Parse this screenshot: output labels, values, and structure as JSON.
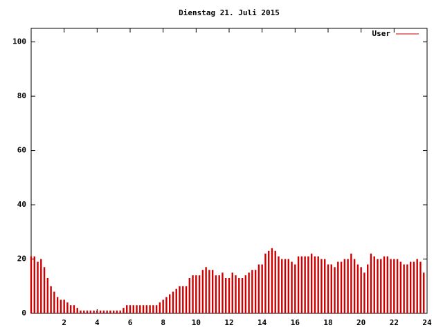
{
  "chart_data": {
    "type": "impulse",
    "title": "Dienstag 21. Juli 2015",
    "x": [
      0,
      0.2,
      0.4,
      0.6,
      0.8,
      1,
      1.2,
      1.4,
      1.6,
      1.8,
      2,
      2.2,
      2.4,
      2.6,
      2.8,
      3,
      3.2,
      3.4,
      3.6,
      3.8,
      4,
      4.2,
      4.4,
      4.6,
      4.8,
      5,
      5.2,
      5.4,
      5.6,
      5.8,
      6,
      6.2,
      6.4,
      6.6,
      6.8,
      7,
      7.2,
      7.4,
      7.6,
      7.8,
      8,
      8.2,
      8.4,
      8.6,
      8.8,
      9,
      9.2,
      9.4,
      9.6,
      9.8,
      10,
      10.2,
      10.4,
      10.6,
      10.8,
      11,
      11.2,
      11.4,
      11.6,
      11.8,
      12,
      12.2,
      12.4,
      12.6,
      12.8,
      13,
      13.2,
      13.4,
      13.6,
      13.8,
      14,
      14.2,
      14.4,
      14.6,
      14.8,
      15,
      15.2,
      15.4,
      15.6,
      15.8,
      16,
      16.2,
      16.4,
      16.6,
      16.8,
      17,
      17.2,
      17.4,
      17.6,
      17.8,
      18,
      18.2,
      18.4,
      18.6,
      18.8,
      19,
      19.2,
      19.4,
      19.6,
      19.8,
      20,
      20.2,
      20.4,
      20.6,
      20.8,
      21,
      21.2,
      21.4,
      21.6,
      21.8,
      22,
      22.2,
      22.4,
      22.6,
      22.8,
      23,
      23.2,
      23.4,
      23.6,
      23.8
    ],
    "series": [
      {
        "name": "User",
        "color": "#cc0000",
        "values": [
          21,
          21,
          19,
          20,
          17,
          13,
          10,
          8,
          6,
          5,
          5,
          4,
          3,
          3,
          2,
          1,
          1,
          1,
          1,
          1,
          1,
          1,
          1,
          1,
          1,
          1,
          1,
          1,
          2,
          3,
          3,
          3,
          3,
          3,
          3,
          3,
          3,
          3,
          3,
          4,
          5,
          6,
          7,
          8,
          9,
          10,
          10,
          10,
          13,
          14,
          14,
          14,
          16,
          17,
          16,
          16,
          14,
          14,
          15,
          13,
          13,
          15,
          14,
          13,
          13,
          14,
          15,
          16,
          16,
          18,
          18,
          22,
          23,
          24,
          23,
          21,
          20,
          20,
          20,
          19,
          18,
          21,
          21,
          21,
          21,
          22,
          21,
          21,
          20,
          20,
          18,
          18,
          17,
          19,
          19,
          20,
          20,
          22,
          20,
          18,
          17,
          15,
          18,
          22,
          21,
          20,
          20,
          21,
          21,
          20,
          20,
          20,
          19,
          18,
          18,
          19,
          19,
          20,
          19,
          15
        ]
      }
    ],
    "xlim": [
      0,
      24
    ],
    "xticks": [
      2,
      4,
      6,
      8,
      10,
      12,
      14,
      16,
      18,
      20,
      22,
      24
    ],
    "ylim": [
      0,
      105
    ],
    "yticks": [
      0,
      20,
      40,
      60,
      80,
      100
    ],
    "legend": "top-right"
  }
}
